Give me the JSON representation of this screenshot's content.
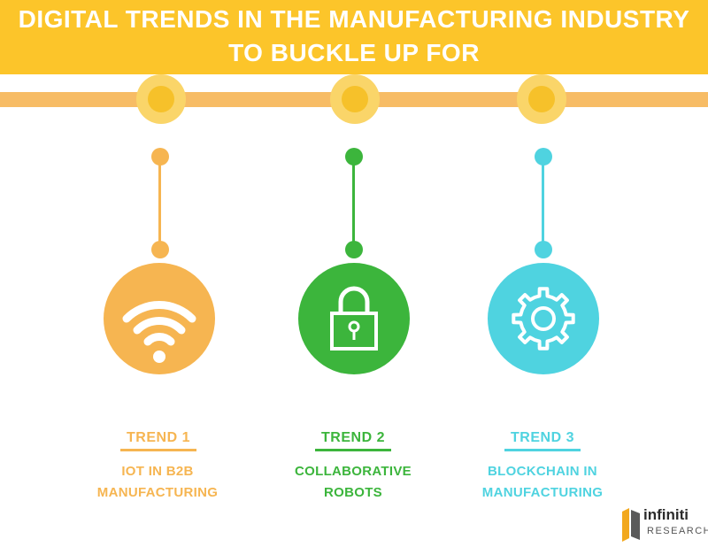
{
  "header": {
    "title_line1": "DIGITAL TRENDS IN THE MANUFACTURING INDUSTRY",
    "title_line2": "TO BUCKLE UP FOR"
  },
  "trends": [
    {
      "label": "TREND 1",
      "line1": "IOT IN B2B",
      "line2": "MANUFACTURING",
      "color": "#f6b551",
      "icon": "wifi-icon"
    },
    {
      "label": "TREND 2",
      "line1": "COLLABORATIVE",
      "line2": "ROBOTS",
      "color": "#3cb53c",
      "icon": "padlock-icon"
    },
    {
      "label": "TREND 3",
      "line1": "BLOCKCHAIN IN",
      "line2": "MANUFACTURING",
      "color": "#4fd3e0",
      "icon": "gear-icon"
    }
  ],
  "logo": {
    "brand": "infiniti",
    "sub": "RESEARCH"
  },
  "colors": {
    "banner": "#fcc52a",
    "rail": "#f7bc65",
    "node_core": "#f6c12a",
    "node_ring": "#fad569"
  }
}
